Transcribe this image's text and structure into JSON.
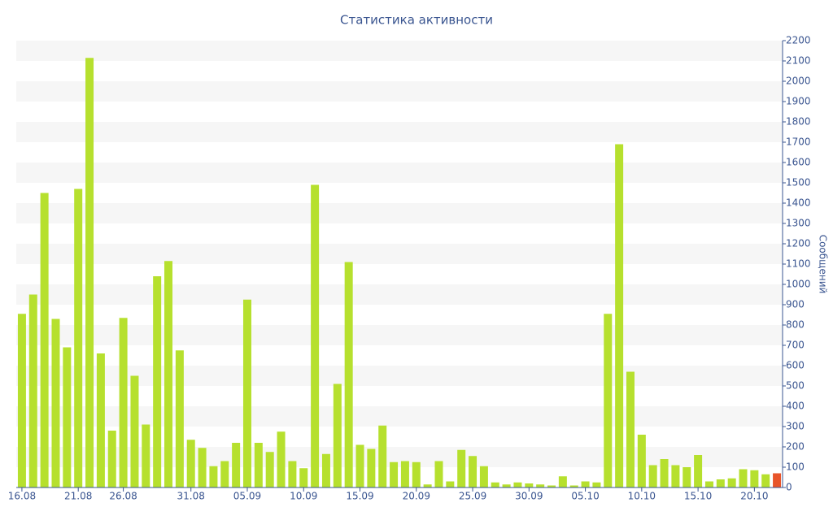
{
  "chart_data": {
    "type": "bar",
    "title": "Статистика активности",
    "y_axis_label": "Сообщений",
    "categories": [
      "16.08",
      null,
      null,
      null,
      null,
      "21.08",
      null,
      null,
      null,
      "26.08",
      null,
      null,
      null,
      null,
      null,
      "31.08",
      null,
      null,
      null,
      null,
      "05.09",
      null,
      null,
      null,
      null,
      "10.09",
      null,
      null,
      null,
      null,
      "15.09",
      null,
      null,
      null,
      null,
      "20.09",
      null,
      null,
      null,
      null,
      "25.09",
      null,
      null,
      null,
      null,
      "30.09",
      null,
      null,
      null,
      null,
      "05.10",
      null,
      null,
      null,
      null,
      "10.10",
      null,
      null,
      null,
      null,
      "15.10",
      null,
      null,
      null,
      null,
      "20.10",
      null,
      null
    ],
    "values": [
      855,
      950,
      1450,
      830,
      690,
      1470,
      2115,
      660,
      280,
      835,
      550,
      310,
      1040,
      1115,
      675,
      235,
      195,
      105,
      130,
      220,
      925,
      220,
      175,
      275,
      130,
      95,
      1490,
      165,
      510,
      1110,
      210,
      190,
      305,
      125,
      130,
      125,
      15,
      130,
      30,
      185,
      155,
      105,
      25,
      15,
      25,
      20,
      15,
      10,
      55,
      10,
      30,
      25,
      855,
      1690,
      570,
      260,
      110,
      140,
      110,
      100,
      160,
      30,
      40,
      45,
      90,
      85,
      65,
      70
    ],
    "color": "#b6e02e",
    "last_color": "#e8552a",
    "ylim": [
      0,
      2200
    ],
    "yticks": [
      0,
      100,
      200,
      300,
      400,
      500,
      600,
      700,
      800,
      900,
      1000,
      1100,
      1200,
      1300,
      1400,
      1500,
      1600,
      1700,
      1800,
      1900,
      2000,
      2100,
      2200
    ],
    "grid": "bands",
    "y_axis_side": "right"
  }
}
